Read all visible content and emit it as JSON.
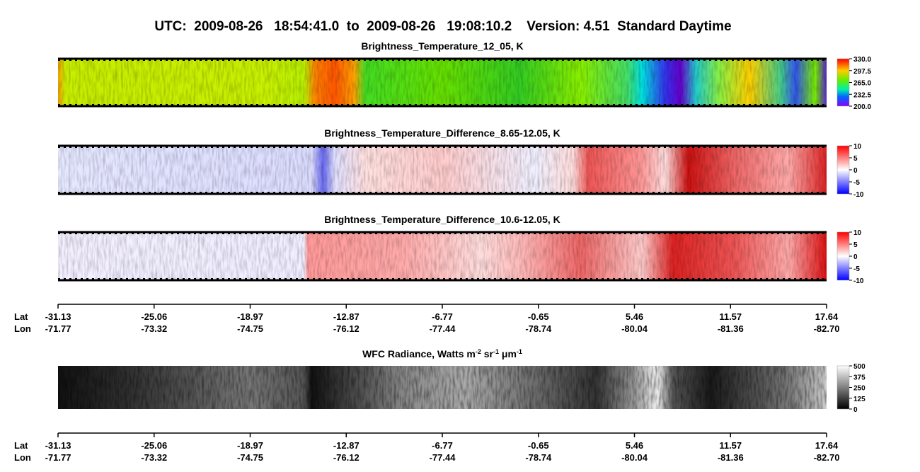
{
  "title": "UTC:  2009-08-26   18:54:41.0  to  2009-08-26   19:08:10.2    Version: 4.51  Standard Daytime",
  "panels": [
    {
      "title": "Brightness_Temperature_12_05, K",
      "colorbar": {
        "lim": [
          200,
          330
        ],
        "ticks": [
          {
            "value": 330,
            "label": "330.0"
          },
          {
            "value": 297.5,
            "label": "297.5"
          },
          {
            "value": 265,
            "label": "265.0"
          },
          {
            "value": 232.5,
            "label": "232.5"
          },
          {
            "value": 200,
            "label": "200.0"
          }
        ]
      }
    },
    {
      "title": "Brightness_Temperature_Difference_8.65-12.05, K",
      "colorbar": {
        "lim": [
          -10,
          10
        ],
        "ticks": [
          10,
          5,
          0,
          -5,
          -10
        ]
      }
    },
    {
      "title": "Brightness_Temperature_Difference_10.6-12.05, K",
      "colorbar": {
        "lim": [
          -10,
          10
        ],
        "ticks": [
          10,
          5,
          0,
          -5,
          -10
        ]
      }
    },
    {
      "title_parts": [
        {
          "text": "WFC Radiance, Watts m"
        },
        {
          "text": "-2",
          "sup": true
        },
        {
          "text": " sr"
        },
        {
          "text": "-1",
          "sup": true
        },
        {
          "text": " μm"
        },
        {
          "text": "-1",
          "sup": true
        }
      ],
      "colorbar": {
        "lim": [
          0,
          500
        ],
        "ticks": [
          500,
          375,
          250,
          125,
          0
        ]
      }
    }
  ],
  "axes": [
    {
      "lat_label": "Lat",
      "lon_label": "Lon",
      "ticks": [
        {
          "lat": "-31.13",
          "lon": "-71.77"
        },
        {
          "lat": "-25.06",
          "lon": "-73.32"
        },
        {
          "lat": "-18.97",
          "lon": "-74.75"
        },
        {
          "lat": "-12.87",
          "lon": "-76.12"
        },
        {
          "lat": "-6.77",
          "lon": "-77.44"
        },
        {
          "lat": "-0.65",
          "lon": "-78.74"
        },
        {
          "lat": "5.46",
          "lon": "-80.04"
        },
        {
          "lat": "11.57",
          "lon": "-81.36"
        },
        {
          "lat": "17.64",
          "lon": "-82.70"
        }
      ]
    },
    {
      "lat_label": "Lat",
      "lon_label": "Lon",
      "ticks": [
        {
          "lat": "-31.13",
          "lon": "-71.77"
        },
        {
          "lat": "-25.06",
          "lon": "-73.32"
        },
        {
          "lat": "-18.97",
          "lon": "-74.75"
        },
        {
          "lat": "-12.87",
          "lon": "-76.12"
        },
        {
          "lat": "-6.77",
          "lon": "-77.44"
        },
        {
          "lat": "-0.65",
          "lon": "-78.74"
        },
        {
          "lat": "5.46",
          "lon": "-80.04"
        },
        {
          "lat": "11.57",
          "lon": "-81.36"
        },
        {
          "lat": "17.64",
          "lon": "-82.70"
        }
      ]
    }
  ]
}
